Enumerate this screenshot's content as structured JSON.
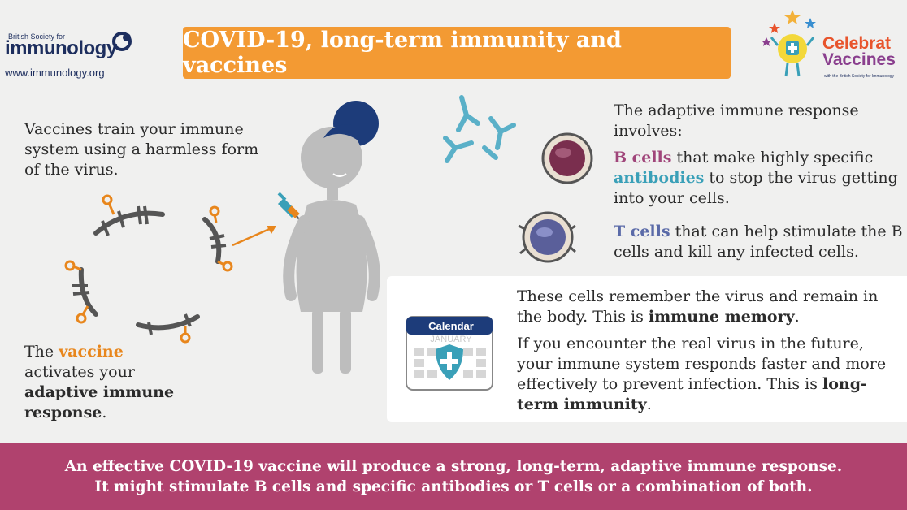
{
  "logo": {
    "small": "British Society for",
    "word": "immunology",
    "url": "www.immunology.org"
  },
  "title": "COVID-19, long-term immunity and vaccines",
  "celebrate": {
    "line1": "Celebrat",
    "line2": "Vaccines",
    "sub": "with the British Society for Immunology"
  },
  "intro": "Vaccines train your immune system using a harmless form of the virus.",
  "vaccine_activates": {
    "pre": "The ",
    "vaccine": "vaccine",
    "mid": " activates your ",
    "adaptive": "adaptive immune response",
    "end": "."
  },
  "adaptive": {
    "intro": "The adaptive immune response involves:",
    "b_cells": "B cells",
    "b_mid": " that make highly specific ",
    "antibodies": "antibodies",
    "b_end": " to stop the virus getting into your cells.",
    "t_cells": "T cells",
    "t_end": " that can help stimulate the B cells and kill any infected cells."
  },
  "calendar": {
    "header": "Calendar",
    "month": "JANUARY"
  },
  "memory": {
    "p1_pre": "These cells remember the virus and remain in the body. This is ",
    "p1_bold": "immune memory",
    "p1_end": ".",
    "p2_pre": "If you encounter the real virus in the future, your immune system responds faster and more effectively to prevent infection. This is ",
    "p2_bold": "long-term immunity",
    "p2_end": "."
  },
  "bottom": {
    "line1": "An effective COVID-19 vaccine will produce a strong, long-term, adaptive immune response.",
    "line2": "It might stimulate B cells and specific antibodies or T cells or a combination of both."
  },
  "colors": {
    "orange": "#f39a33",
    "magenta": "#b0426e",
    "teal": "#3aa0b8",
    "navy": "#1d2e5e"
  }
}
